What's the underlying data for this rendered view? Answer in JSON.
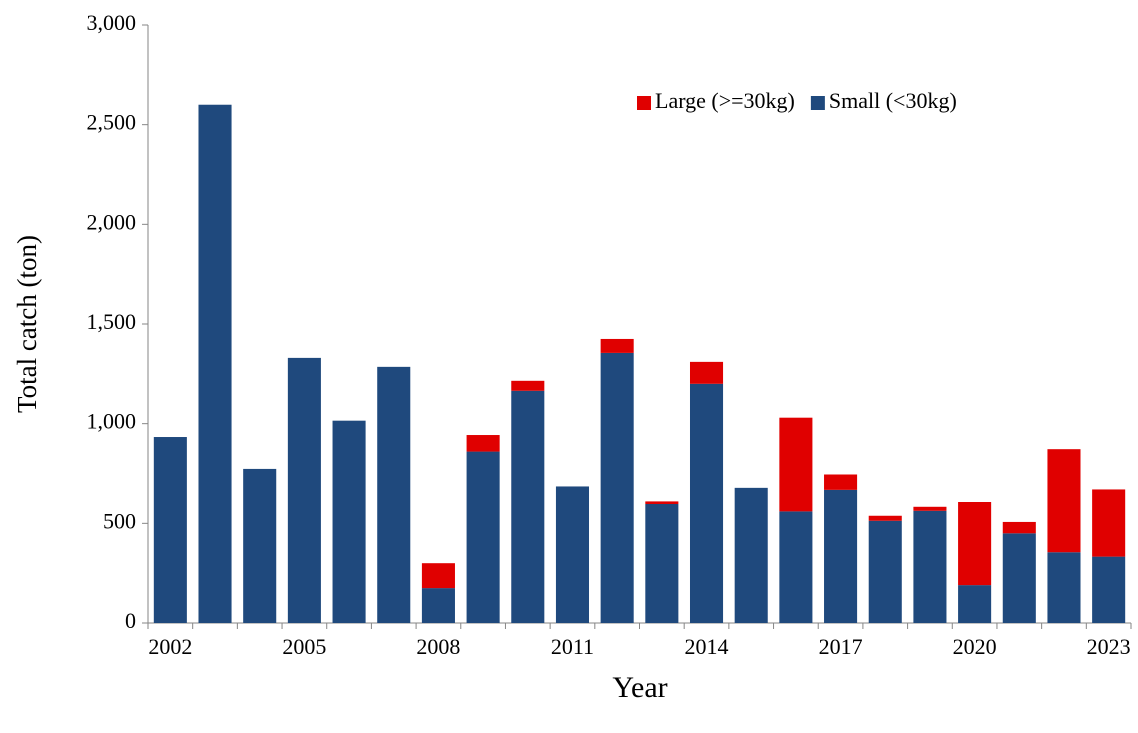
{
  "chart_data": {
    "type": "stacked-bar",
    "x_label": "Year",
    "y_label": "Total catch (ton)",
    "categories": [
      "2002",
      null,
      null,
      "2005",
      null,
      null,
      "2008",
      null,
      null,
      "2011",
      null,
      null,
      "2014",
      null,
      null,
      "2017",
      null,
      null,
      "2020",
      null,
      null,
      "2023"
    ],
    "series": [
      {
        "name": "Large (>=30kg)",
        "color": "#e00000",
        "values": [
          0,
          0,
          0,
          0,
          0,
          0,
          125,
          83,
          50,
          0,
          70,
          13,
          110,
          0,
          470,
          77,
          25,
          20,
          417,
          57,
          517,
          337
        ]
      },
      {
        "name": "Small (<30kg)",
        "color": "#1f497d",
        "values": [
          933,
          2600,
          773,
          1330,
          1015,
          1285,
          175,
          860,
          1165,
          685,
          1355,
          597,
          1200,
          678,
          560,
          668,
          513,
          563,
          190,
          450,
          355,
          333
        ]
      }
    ],
    "ylim": [
      0,
      3000
    ],
    "yticks": [
      0,
      500,
      {
        "value": 1000,
        "label": "1,000"
      },
      {
        "value": 1500,
        "label": "1,500"
      },
      {
        "value": 2000,
        "label": "2,000"
      },
      {
        "value": 2500,
        "label": "2,500"
      },
      {
        "value": 3000,
        "label": "3,000"
      }
    ],
    "legend": "top-right",
    "grid": false
  }
}
